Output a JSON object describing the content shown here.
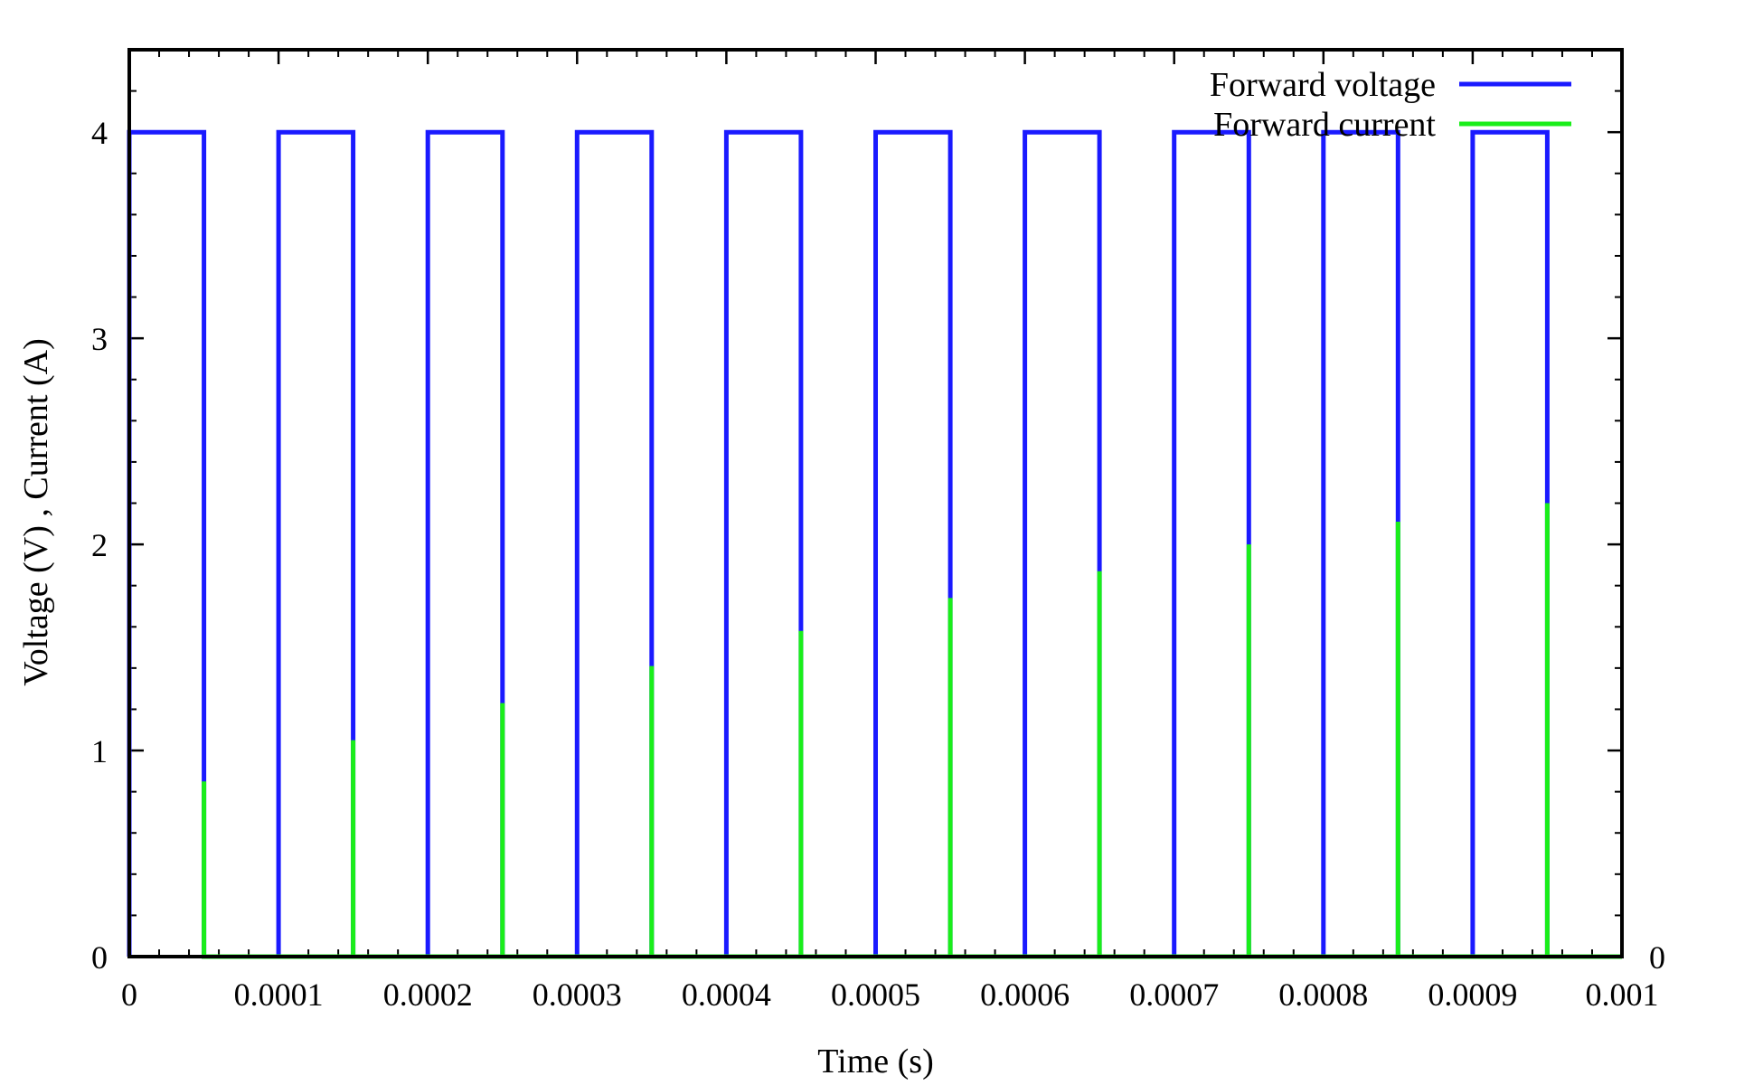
{
  "chart_data": {
    "type": "line",
    "title": "",
    "xlabel": "Time (s)",
    "ylabel": "Voltage (V) , Current (A)",
    "xlim": [
      0,
      0.001
    ],
    "ylim": [
      0,
      4.4
    ],
    "x_ticks": [
      0,
      0.0001,
      0.0002,
      0.0003,
      0.0004,
      0.0005,
      0.0006,
      0.0007,
      0.0008,
      0.0009,
      0.001
    ],
    "x_tick_labels": [
      "0",
      "0.0001",
      "0.0002",
      "0.0003",
      "0.0004",
      "0.0005",
      "0.0006",
      "0.0007",
      "0.0008",
      "0.0009",
      "0.001"
    ],
    "y_ticks": [
      0,
      1,
      2,
      3,
      4
    ],
    "y_tick_labels": [
      "0",
      "1",
      "2",
      "3",
      "4"
    ],
    "y2_ticks": [
      0
    ],
    "y2_tick_labels": [
      "0"
    ],
    "grid": false,
    "legend_position": "top-right",
    "series": [
      {
        "name": "Forward voltage",
        "color": "#1a1aff",
        "x": [
          0,
          0,
          5e-05,
          5e-05,
          0.0001,
          0.0001,
          0.00015,
          0.00015,
          0.0002,
          0.0002,
          0.00025,
          0.00025,
          0.0003,
          0.0003,
          0.00035,
          0.00035,
          0.0004,
          0.0004,
          0.00045,
          0.00045,
          0.0005,
          0.0005,
          0.00055,
          0.00055,
          0.0006,
          0.0006,
          0.00065,
          0.00065,
          0.0007,
          0.0007,
          0.00075,
          0.00075,
          0.0008,
          0.0008,
          0.00085,
          0.00085,
          0.0009,
          0.0009,
          0.00095,
          0.00095,
          0.001
        ],
        "y": [
          0,
          4,
          4,
          0,
          0,
          4,
          4,
          0,
          0,
          4,
          4,
          0,
          0,
          4,
          4,
          0,
          0,
          4,
          4,
          0,
          0,
          4,
          4,
          0,
          0,
          4,
          4,
          0,
          0,
          4,
          4,
          0,
          0,
          4,
          4,
          0,
          0,
          4,
          4,
          0,
          0
        ]
      },
      {
        "name": "Forward current",
        "color": "#1aee1a",
        "x": [
          5e-05,
          5e-05,
          5e-05,
          0.00015,
          0.00015,
          0.00015,
          0.00025,
          0.00025,
          0.00025,
          0.00035,
          0.00035,
          0.00035,
          0.00045,
          0.00045,
          0.00045,
          0.00055,
          0.00055,
          0.00055,
          0.00065,
          0.00065,
          0.00065,
          0.00075,
          0.00075,
          0.00075,
          0.00085,
          0.00085,
          0.00085,
          0.00095,
          0.00095,
          0.00095,
          0.001
        ],
        "y": [
          0,
          0.85,
          0,
          0,
          1.05,
          0,
          0,
          1.23,
          0,
          0,
          1.41,
          0,
          0,
          1.58,
          0,
          0,
          1.74,
          0,
          0,
          1.87,
          0,
          0,
          2.0,
          0,
          0,
          2.11,
          0,
          0,
          2.2,
          0,
          0
        ]
      }
    ]
  }
}
